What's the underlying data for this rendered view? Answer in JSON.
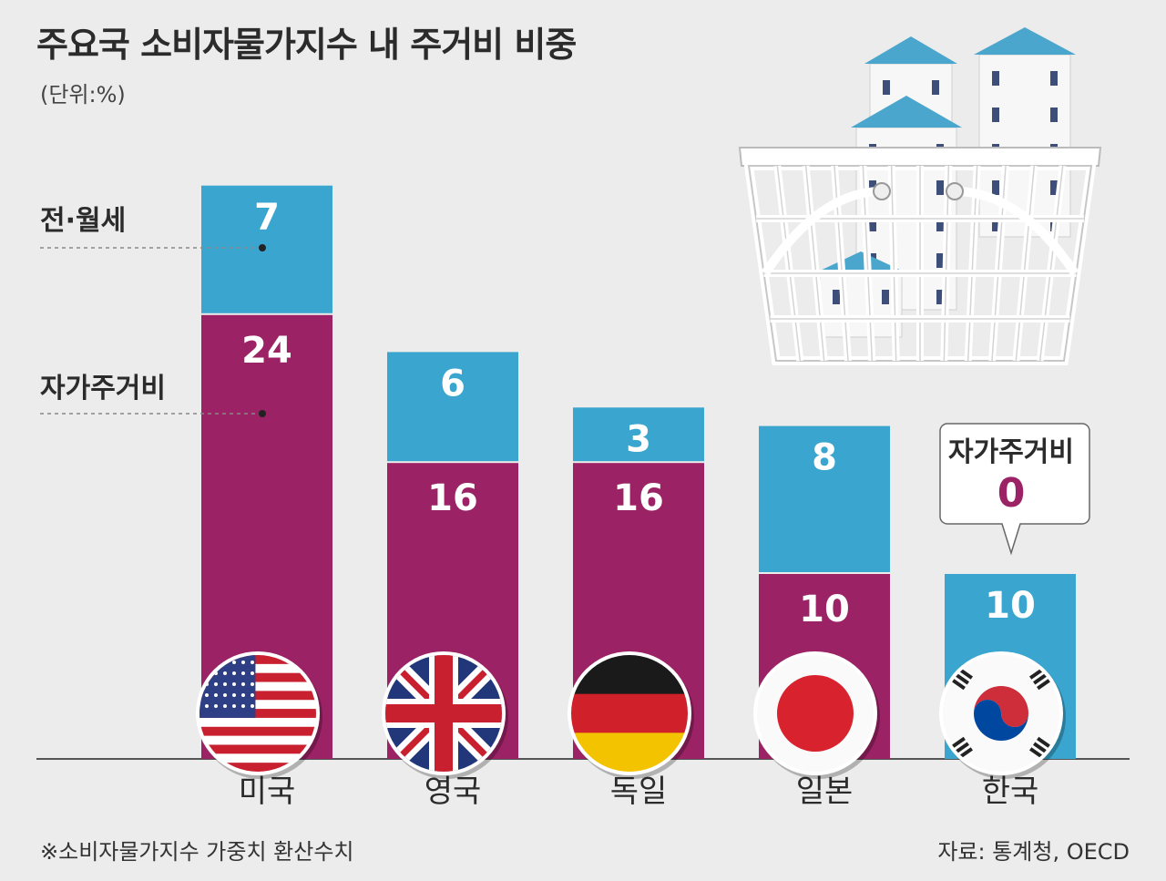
{
  "title": "주요국 소비자물가지수 내 주거비 비중",
  "unit": "(단위:%)",
  "note": "※소비자물가지수 가중치 환산수치",
  "source": "자료: 통계청, OECD",
  "colors": {
    "rent": "#3aa6cf",
    "owner": "#9b2264",
    "background": "#ececec"
  },
  "chart_data": {
    "type": "bar",
    "stacked": true,
    "categories": [
      "미국",
      "영국",
      "독일",
      "일본",
      "한국"
    ],
    "series": [
      {
        "name": "자가주거비",
        "values": [
          24,
          16,
          16,
          10,
          0
        ]
      },
      {
        "name": "전·월세",
        "values": [
          7,
          6,
          3,
          8,
          10
        ]
      }
    ],
    "legend_labels": {
      "rent": "전·월세",
      "owner": "자가주거비"
    },
    "callout": {
      "title": "자가주거비",
      "value": "0"
    },
    "flags": [
      "us-flag-icon",
      "uk-flag-icon",
      "germany-flag-icon",
      "japan-flag-icon",
      "korea-flag-icon"
    ],
    "decoration": "shopping-basket-with-houses-icon"
  }
}
